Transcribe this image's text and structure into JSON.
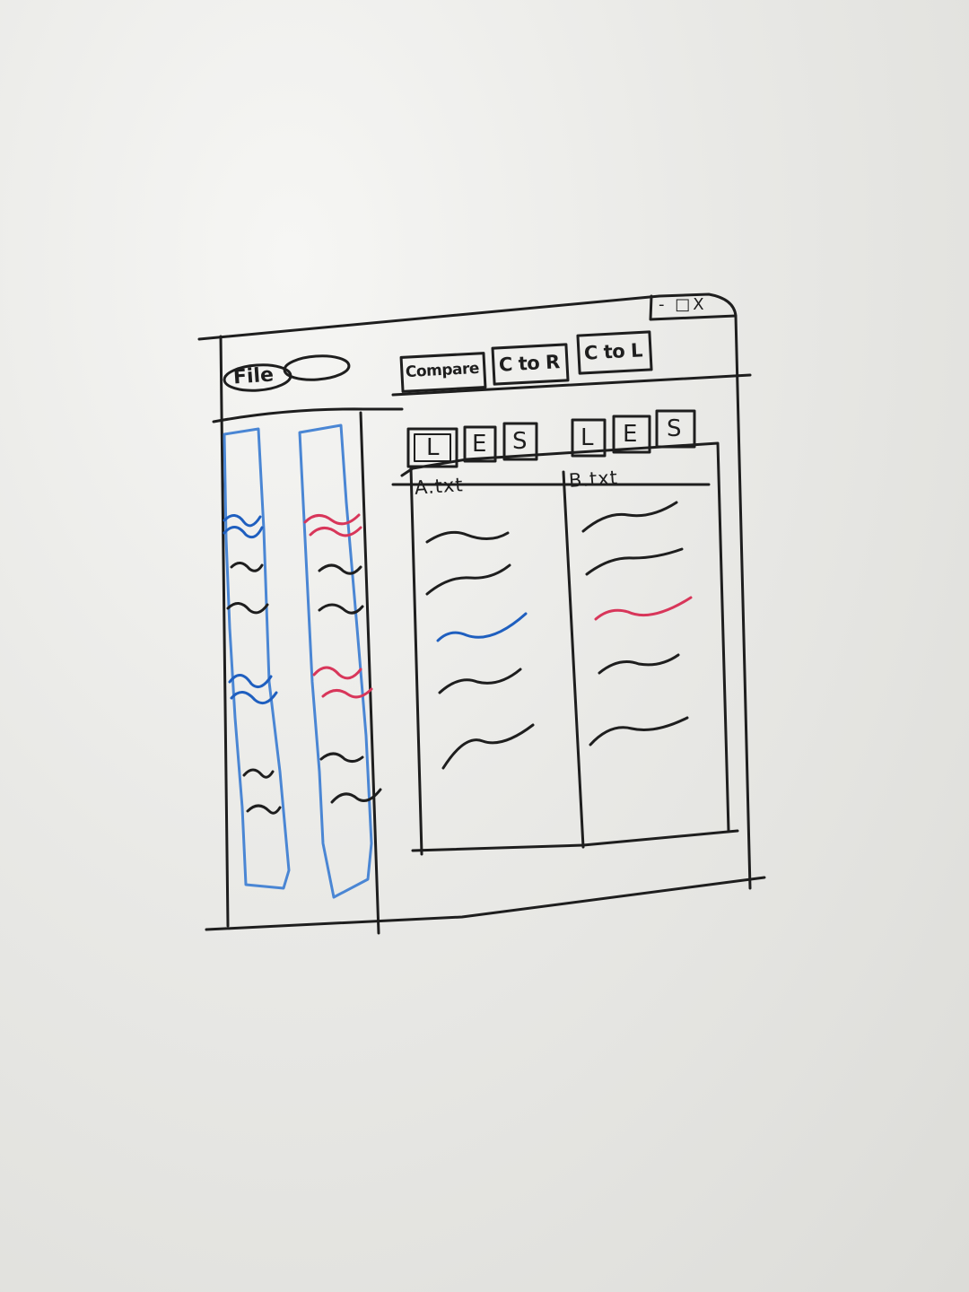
{
  "window": {
    "controls_label": "- □X"
  },
  "menu": {
    "file_label": "File"
  },
  "toolbar": {
    "compare_label": "Compare",
    "copy_to_right_label": "C to R",
    "copy_to_left_label": "C to L"
  },
  "view_toggles": {
    "left_group": [
      "L",
      "E",
      "S"
    ],
    "right_group": [
      "L",
      "E",
      "S"
    ]
  },
  "diff_panel": {
    "left_file": "A.txt",
    "right_file": "B.txt"
  },
  "colors": {
    "ink": "#1e1e1e",
    "blue_marker": "#1f5fbf",
    "blue_strip": "#4a86d4",
    "red_marker": "#d8365a",
    "board": "#ebebe8"
  }
}
